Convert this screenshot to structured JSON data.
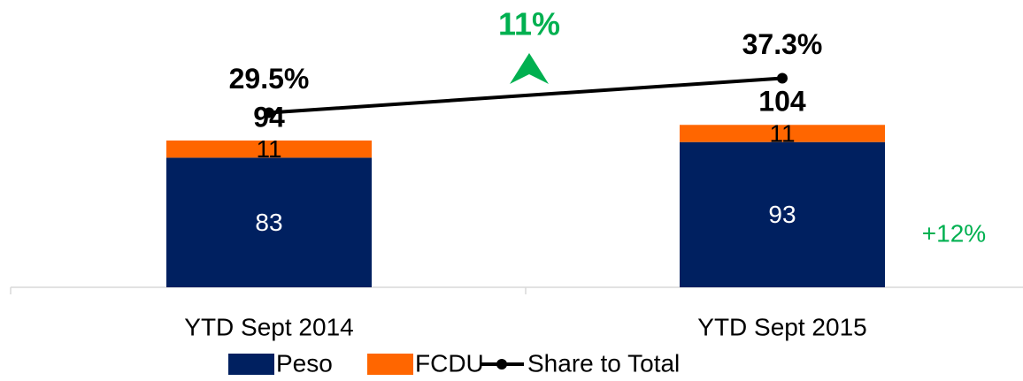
{
  "chart_data": {
    "type": "bar-line",
    "categories": [
      "YTD Sept 2014",
      "YTD Sept 2015"
    ],
    "series": [
      {
        "name": "Peso",
        "color": "#002060",
        "values": [
          83,
          93
        ],
        "stacked": true
      },
      {
        "name": "FCDU",
        "color": "#ff6600",
        "values": [
          11,
          11
        ],
        "stacked": true
      },
      {
        "name": "Share to Total",
        "color": "#000000",
        "type": "line",
        "axis": "y2",
        "values": [
          29.5,
          37.3
        ],
        "value_labels": [
          "29.5%",
          "37.3%"
        ]
      }
    ],
    "totals": [
      94,
      104
    ],
    "annotations": [
      {
        "text": "11%",
        "color": "#00b050"
      },
      {
        "text": "+12%",
        "color": "#00b050"
      }
    ],
    "ylim": [
      0,
      150
    ],
    "y2lim": [
      -10,
      43
    ],
    "legend": "bottom"
  }
}
